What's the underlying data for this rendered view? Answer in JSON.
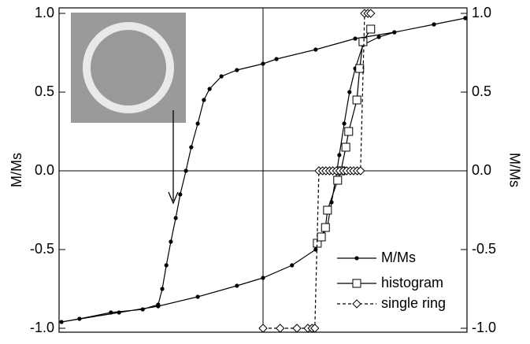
{
  "chart_data": {
    "type": "line",
    "ylabel": "M/Ms",
    "y2label": "M/Ms",
    "xlim": [
      -50,
      50
    ],
    "ylim": [
      -1.025,
      1.035
    ],
    "yticks": [
      {
        "value": 1,
        "label": "1.0"
      },
      {
        "value": 0.5,
        "label": "0.5"
      },
      {
        "value": 0,
        "label": "0.0"
      },
      {
        "value": -0.5,
        "label": "-0.5"
      },
      {
        "value": -1,
        "label": "-1.0"
      }
    ],
    "y2lim": [
      -1.025,
      1.035
    ],
    "y2ticks": [
      {
        "value": 1,
        "label": "1.0"
      },
      {
        "value": 0.5,
        "label": "0.5"
      },
      {
        "value": 0,
        "label": "0.0"
      },
      {
        "value": -0.5,
        "label": "-0.5"
      },
      {
        "value": -1,
        "label": "-1.0"
      }
    ],
    "legend": "lower right",
    "series": [
      {
        "name": "M/Ms",
        "color": "#000000",
        "marker": "dot",
        "dash": false,
        "x": [
          49.6,
          41.9,
          32.2,
          22.6,
          12.9,
          3.3,
          0,
          -6.4,
          -10.2,
          -13.1,
          -14.5,
          -16.0,
          -17.6,
          -18.9,
          -20.3,
          -21.4,
          -22.6,
          -23.7,
          -24.7,
          -25.7,
          -29.5,
          -37.3,
          -45.0,
          -49.4,
          -35.3,
          -25.7,
          -16.0,
          -6.4,
          0,
          7.1,
          12.9,
          15.8,
          16.8,
          17.8,
          18.7,
          19.9,
          21.2,
          22.6,
          24.5,
          28.4,
          32.2,
          41.9,
          49.6
        ],
        "values": [
          0.97,
          0.93,
          0.88,
          0.84,
          0.77,
          0.71,
          0.68,
          0.64,
          0.6,
          0.52,
          0.45,
          0.3,
          0.15,
          0.0,
          -0.15,
          -0.3,
          -0.45,
          -0.6,
          -0.75,
          -0.85,
          -0.88,
          -0.9,
          -0.94,
          -0.96,
          -0.9,
          -0.86,
          -0.8,
          -0.73,
          -0.68,
          -0.6,
          -0.5,
          -0.35,
          -0.2,
          -0.05,
          0.1,
          0.3,
          0.5,
          0.65,
          0.8,
          0.85,
          0.88,
          0.93,
          0.97
        ]
      },
      {
        "name": "histogram",
        "color": "#000000",
        "marker": "square",
        "dash": false,
        "x": [
          13.3,
          14.3,
          15.3,
          15.8,
          18.3,
          19.1,
          20.3,
          21.0,
          23.0,
          23.7,
          24.5,
          26.4
        ],
        "values": [
          -0.46,
          -0.42,
          -0.36,
          -0.25,
          -0.06,
          0.0,
          0.15,
          0.25,
          0.45,
          0.65,
          0.82,
          0.9
        ]
      },
      {
        "name": "single ring",
        "color": "#000000",
        "marker": "diamond",
        "dash": true,
        "x": [
          0,
          4.2,
          8.3,
          11.0,
          12.0,
          12.7,
          13.7,
          14.6,
          15.4,
          16.3,
          17.1,
          18.0,
          18.8,
          19.7,
          20.5,
          21.4,
          22.2,
          23.1,
          23.9,
          24.9,
          25.7,
          26.4
        ],
        "values": [
          -1,
          -1,
          -1,
          -1,
          -1,
          -1,
          0,
          0,
          0,
          0,
          0,
          0,
          0,
          0,
          0,
          0,
          0,
          0,
          0,
          1,
          1,
          1
        ]
      }
    ]
  }
}
